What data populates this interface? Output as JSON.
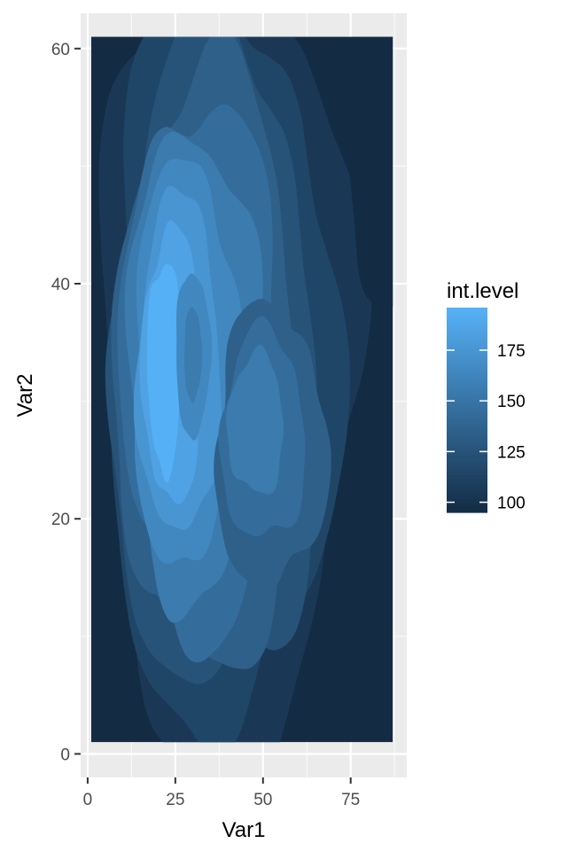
{
  "chart_data": {
    "type": "heatmap",
    "subtype": "filled-contour",
    "xlabel": "Var1",
    "ylabel": "Var2",
    "x_ticks": [
      0,
      25,
      50,
      75
    ],
    "y_ticks": [
      0,
      20,
      40,
      60
    ],
    "xlim": [
      -2,
      91
    ],
    "ylim": [
      -2,
      63
    ],
    "data_extent": {
      "x": [
        1,
        87
      ],
      "y": [
        1,
        61
      ]
    },
    "grid": true,
    "legend": {
      "title": "int.level",
      "position": "right",
      "ticks": [
        100,
        125,
        150,
        175
      ],
      "range": [
        95,
        196
      ],
      "color_low": "#132B43",
      "color_high": "#56B1F7"
    },
    "peak": {
      "x": 22,
      "y": 33,
      "value": 195
    },
    "local_min": {
      "x": 30,
      "y": 34,
      "value": 150
    },
    "contour_levels": [
      100,
      110,
      120,
      130,
      140,
      150,
      160,
      170,
      180,
      190
    ]
  }
}
